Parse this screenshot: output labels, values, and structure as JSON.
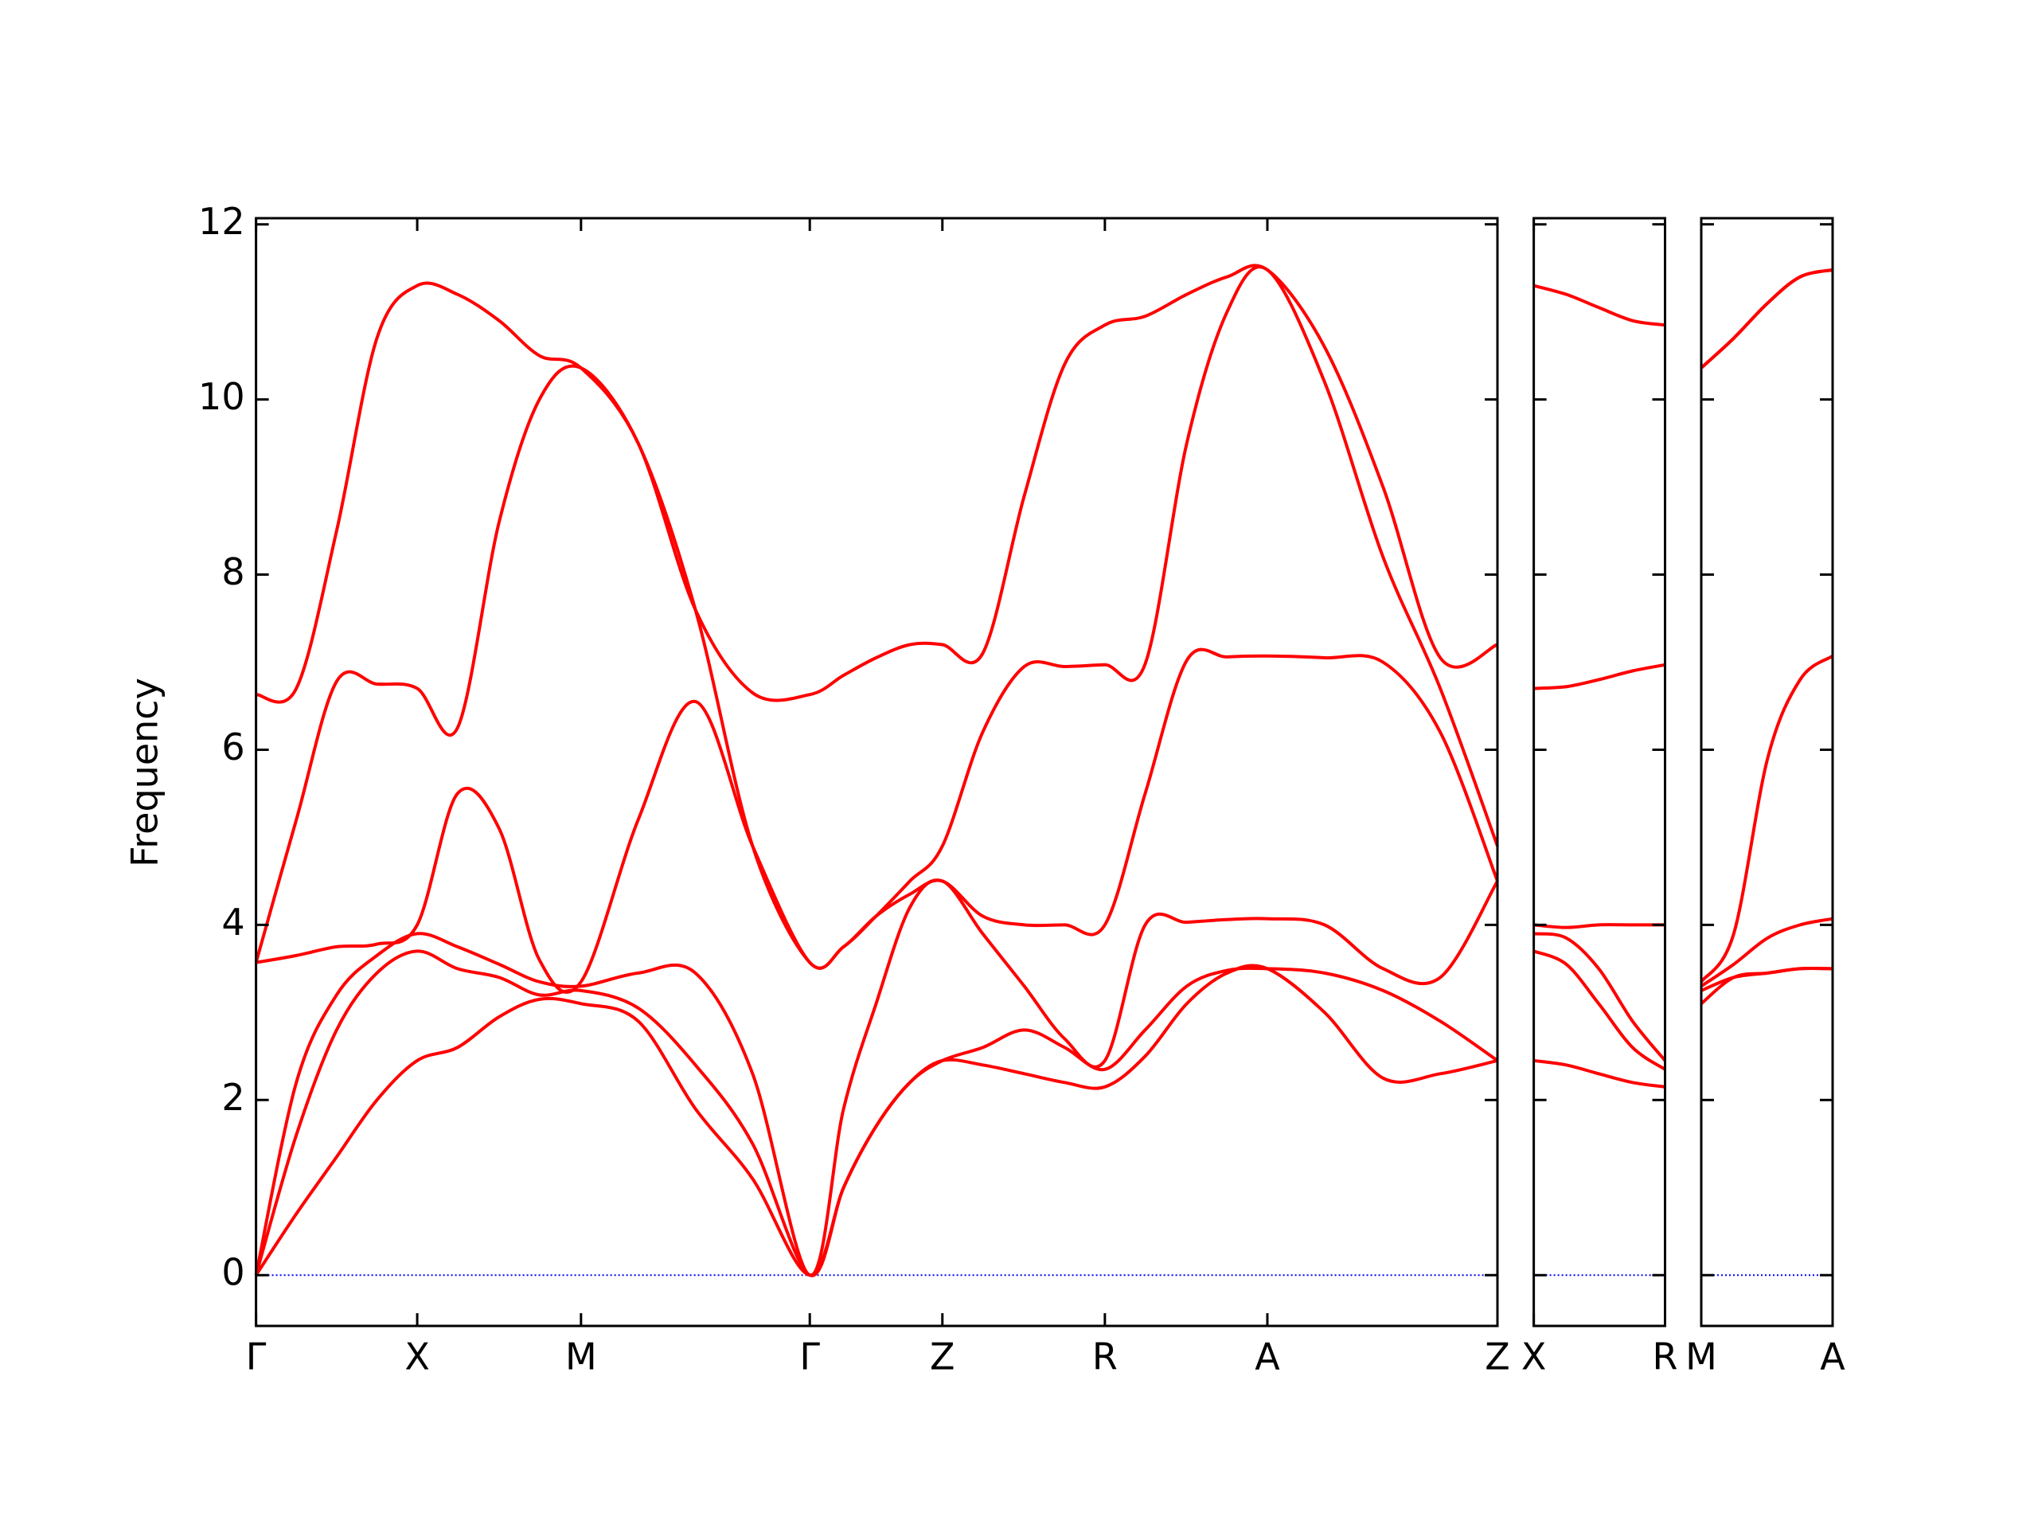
{
  "chart_data": [
    {
      "type": "line",
      "ylabel": "Frequency",
      "x": [
        0,
        0.31,
        0.62,
        0.93,
        1.24,
        1.55,
        1.87,
        2.18,
        2.5,
        2.94,
        3.38,
        3.82,
        4.26,
        4.52,
        4.77,
        5.03,
        5.28,
        5.59,
        5.91,
        6.22,
        6.53,
        6.84,
        7.16,
        7.47,
        7.78,
        8.22,
        8.67,
        9.11,
        9.55
      ],
      "xlim": [
        0,
        9.55
      ],
      "ylim": [
        -0.58,
        12.07
      ],
      "xticks": [
        {
          "value": 0,
          "label": "Γ"
        },
        {
          "value": 1.24,
          "label": "X"
        },
        {
          "value": 2.5,
          "label": "M"
        },
        {
          "value": 4.26,
          "label": "Γ"
        },
        {
          "value": 5.28,
          "label": "Z"
        },
        {
          "value": 6.53,
          "label": "R"
        },
        {
          "value": 7.78,
          "label": "A"
        },
        {
          "value": 9.55,
          "label": "Z"
        }
      ],
      "yticks": [
        0,
        2,
        4,
        6,
        8,
        10,
        12
      ],
      "zero_line": {
        "value": 0,
        "color": "#0000ff"
      },
      "series": [
        {
          "color": "#ff0000",
          "values": [
            0,
            0.7,
            1.35,
            2.0,
            2.45,
            2.6,
            2.95,
            3.15,
            3.1,
            2.9,
            1.9,
            1.1,
            0,
            1.0,
            1.7,
            2.2,
            2.45,
            2.4,
            2.3,
            2.2,
            2.15,
            2.5,
            3.1,
            3.45,
            3.5,
            3.0,
            2.25,
            2.3,
            2.45
          ]
        },
        {
          "color": "#ff0000",
          "values": [
            0,
            1.6,
            2.8,
            3.45,
            3.7,
            3.5,
            3.4,
            3.2,
            3.25,
            3.05,
            2.4,
            1.5,
            0,
            1.0,
            1.7,
            2.2,
            2.45,
            2.6,
            2.8,
            2.6,
            2.35,
            2.8,
            3.3,
            3.48,
            3.5,
            3.45,
            3.25,
            2.9,
            2.45
          ]
        },
        {
          "color": "#ff0000",
          "values": [
            0,
            2.2,
            3.2,
            3.65,
            3.9,
            3.75,
            3.55,
            3.35,
            3.3,
            3.45,
            3.45,
            2.3,
            0,
            1.9,
            3.1,
            4.2,
            4.5,
            3.9,
            3.3,
            2.7,
            2.45,
            4.0,
            4.03,
            4.06,
            4.07,
            4.0,
            3.5,
            3.4,
            4.5
          ]
        },
        {
          "color": "#ff0000",
          "values": [
            3.57,
            3.65,
            3.75,
            3.78,
            4.0,
            5.5,
            5.1,
            3.6,
            3.35,
            5.2,
            6.55,
            4.9,
            3.57,
            3.75,
            4.1,
            4.35,
            4.5,
            4.1,
            4.0,
            4.0,
            4.0,
            5.5,
            7.02,
            7.06,
            7.07,
            7.05,
            7.0,
            6.2,
            4.5
          ]
        },
        {
          "color": "#ff0000",
          "values": [
            3.57,
            5.2,
            6.78,
            6.75,
            6.7,
            6.25,
            8.6,
            10.0,
            10.36,
            9.5,
            7.6,
            4.9,
            3.57,
            3.75,
            4.1,
            4.5,
            4.9,
            6.2,
            6.95,
            6.95,
            6.97,
            6.98,
            9.5,
            11.0,
            11.48,
            10.2,
            8.2,
            6.7,
            4.9
          ]
        },
        {
          "color": "#ff0000",
          "values": [
            6.63,
            6.7,
            8.5,
            10.7,
            11.3,
            11.2,
            10.9,
            10.5,
            10.36,
            9.5,
            7.6,
            6.65,
            6.63,
            6.85,
            7.05,
            7.2,
            7.2,
            7.1,
            8.9,
            10.4,
            10.85,
            10.95,
            11.2,
            11.4,
            11.48,
            10.6,
            9.0,
            7.05,
            7.2
          ]
        }
      ]
    },
    {
      "type": "line",
      "x": [
        0,
        0.25,
        0.5,
        0.76,
        1.01
      ],
      "xlim": [
        0,
        1.01
      ],
      "ylim": [
        -0.58,
        12.07
      ],
      "xticks": [
        {
          "value": 0,
          "label": "X"
        },
        {
          "value": 1.01,
          "label": "R"
        }
      ],
      "zero_line": {
        "value": 0,
        "color": "#0000ff"
      },
      "series": [
        {
          "color": "#ff0000",
          "values": [
            2.45,
            2.4,
            2.3,
            2.2,
            2.15
          ]
        },
        {
          "color": "#ff0000",
          "values": [
            3.7,
            3.55,
            3.1,
            2.6,
            2.35
          ]
        },
        {
          "color": "#ff0000",
          "values": [
            3.9,
            3.85,
            3.5,
            2.9,
            2.45
          ]
        },
        {
          "color": "#ff0000",
          "values": [
            4.0,
            3.97,
            4.0,
            4.0,
            4.0
          ]
        },
        {
          "color": "#ff0000",
          "values": [
            6.7,
            6.72,
            6.8,
            6.9,
            6.97
          ]
        },
        {
          "color": "#ff0000",
          "values": [
            11.3,
            11.2,
            11.05,
            10.9,
            10.85
          ]
        }
      ]
    },
    {
      "type": "line",
      "x": [
        0,
        0.25,
        0.51,
        0.76,
        1.01
      ],
      "xlim": [
        0,
        1.01
      ],
      "ylim": [
        -0.58,
        12.07
      ],
      "xticks": [
        {
          "value": 0,
          "label": "M"
        },
        {
          "value": 1.01,
          "label": "A"
        }
      ],
      "zero_line": {
        "value": 0,
        "color": "#0000ff"
      },
      "series": [
        {
          "color": "#ff0000",
          "values": [
            3.1,
            3.4,
            3.45,
            3.5,
            3.5
          ]
        },
        {
          "color": "#ff0000",
          "values": [
            3.25,
            3.4,
            3.45,
            3.5,
            3.5
          ]
        },
        {
          "color": "#ff0000",
          "values": [
            3.3,
            3.55,
            3.85,
            4.0,
            4.07
          ]
        },
        {
          "color": "#ff0000",
          "values": [
            3.35,
            3.9,
            5.9,
            6.8,
            7.07
          ]
        },
        {
          "color": "#ff0000",
          "values": [
            10.36,
            10.7,
            11.1,
            11.4,
            11.48
          ]
        },
        {
          "color": "#ff0000",
          "values": [
            10.36,
            10.7,
            11.1,
            11.4,
            11.48
          ]
        }
      ]
    }
  ]
}
